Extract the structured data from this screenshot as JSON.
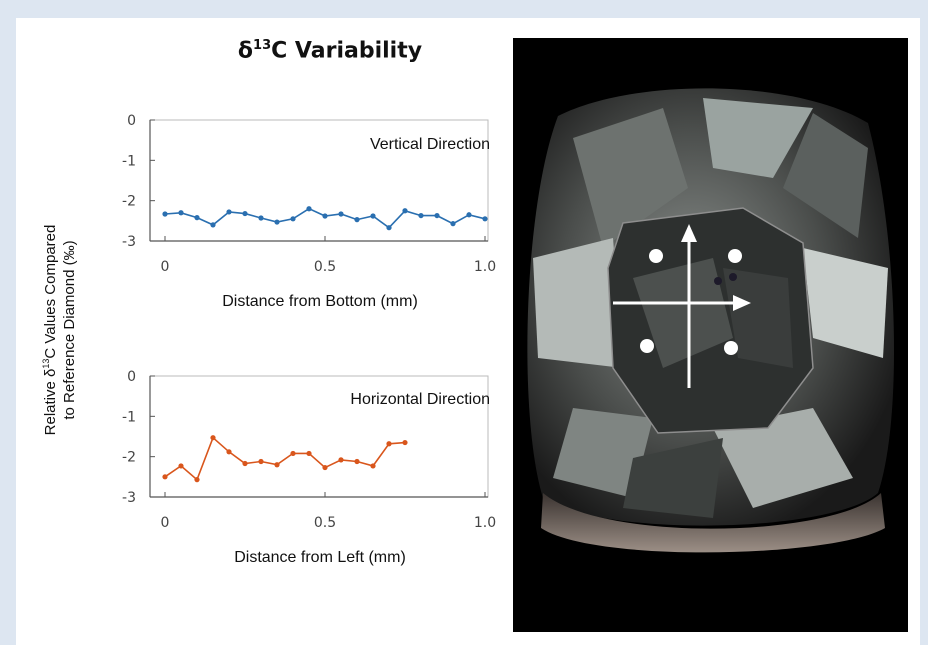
{
  "title": {
    "prefix": "δ",
    "sup": "13",
    "suffix": "C Variability"
  },
  "ylabel": {
    "line1_pre": "Relative δ",
    "line1_sup": "13",
    "line1_post": "C Values Compared",
    "line2": "to Reference Diamond (‰)"
  },
  "colors": {
    "vertical": "#2a6fb0",
    "horizontal": "#d9561c",
    "background": "#dde6f1"
  },
  "chart_data": [
    {
      "type": "line",
      "title": "Vertical Direction",
      "xlabel": "Distance from Bottom (mm)",
      "ylabel": "",
      "xlim": [
        0,
        1.0
      ],
      "ylim": [
        -3,
        0
      ],
      "xticks": [
        "0",
        "0.5",
        "1.0"
      ],
      "yticks": [
        "0",
        "-1",
        "-2",
        "-3"
      ],
      "x": [
        0,
        0.05,
        0.1,
        0.15,
        0.2,
        0.25,
        0.3,
        0.35,
        0.4,
        0.45,
        0.5,
        0.55,
        0.6,
        0.65,
        0.7,
        0.75,
        0.8,
        0.85,
        0.9,
        0.95,
        1.0
      ],
      "series": [
        {
          "values": [
            -2.33,
            -2.3,
            -2.42,
            -2.6,
            -2.28,
            -2.32,
            -2.43,
            -2.53,
            -2.45,
            -2.2,
            -2.38,
            -2.33,
            -2.47,
            -2.38,
            -2.67,
            -2.25,
            -2.37,
            -2.37,
            -2.57,
            -2.35,
            -2.45
          ]
        }
      ]
    },
    {
      "type": "line",
      "title": "Horizontal Direction",
      "xlabel": "Distance from Left (mm)",
      "ylabel": "",
      "xlim": [
        0,
        1.0
      ],
      "ylim": [
        -3,
        0
      ],
      "xticks": [
        "0",
        "0.5",
        "1.0"
      ],
      "yticks": [
        "0",
        "-1",
        "-2",
        "-3"
      ],
      "x": [
        0,
        0.05,
        0.1,
        0.15,
        0.2,
        0.25,
        0.3,
        0.35,
        0.4,
        0.45,
        0.5,
        0.55,
        0.6,
        0.65,
        0.7,
        0.75
      ],
      "series": [
        {
          "values": [
            -2.5,
            -2.23,
            -2.57,
            -1.53,
            -1.88,
            -2.17,
            -2.12,
            -2.2,
            -1.92,
            -1.92,
            -2.27,
            -2.08,
            -2.12,
            -2.23,
            -1.68,
            -1.65
          ]
        }
      ]
    }
  ]
}
